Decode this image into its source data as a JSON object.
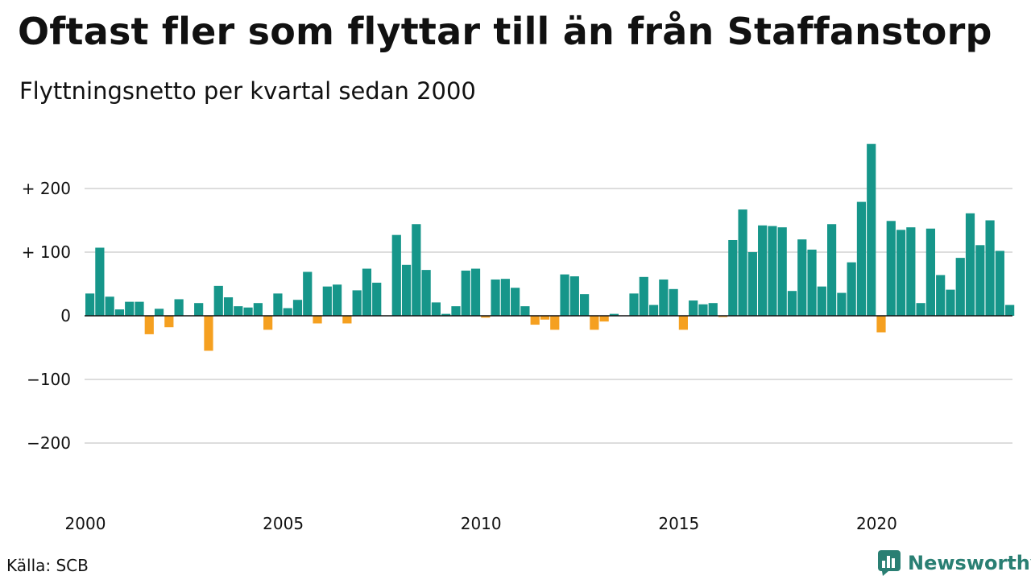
{
  "title": "Oftast fler som flyttar till än från Staffanstorp",
  "subtitle": "Flyttningsnetto per kvartal sedan 2000",
  "source": "Källa: SCB",
  "brand": "Newsworthy",
  "colors": {
    "positive": "#16968a",
    "negative": "#f5a020",
    "grid": "#dddddd",
    "brand": "#2a7f73"
  },
  "chart_data": {
    "type": "bar",
    "title": "Oftast fler som flyttar till än från Staffanstorp",
    "subtitle": "Flyttningsnetto per kvartal sedan 2000",
    "xlabel": "",
    "ylabel": "",
    "start_year": 2000,
    "periods_per_year": 4,
    "ylim": [
      -250,
      280
    ],
    "yticks": [
      {
        "value": 200,
        "label": "+ 200"
      },
      {
        "value": 100,
        "label": "+ 100"
      },
      {
        "value": 0,
        "label": "0"
      },
      {
        "value": -100,
        "label": "−100"
      },
      {
        "value": -200,
        "label": "−200"
      }
    ],
    "xticks": [
      "2000",
      "2005",
      "2010",
      "2015",
      "2020"
    ],
    "grid": true,
    "values": [
      35,
      107,
      30,
      10,
      22,
      22,
      -29,
      11,
      -18,
      26,
      0,
      20,
      -55,
      47,
      29,
      15,
      13,
      20,
      -22,
      35,
      12,
      25,
      69,
      -12,
      46,
      49,
      -12,
      40,
      74,
      52,
      0,
      127,
      80,
      144,
      72,
      21,
      3,
      15,
      71,
      74,
      -3,
      57,
      58,
      44,
      15,
      -14,
      -6,
      -22,
      65,
      62,
      34,
      -22,
      -9,
      3,
      0,
      35,
      61,
      17,
      57,
      42,
      -22,
      24,
      18,
      20,
      -2,
      119,
      167,
      100,
      142,
      141,
      139,
      39,
      120,
      104,
      46,
      144,
      36,
      84,
      179,
      270,
      -26,
      149,
      135,
      139,
      20,
      137,
      64,
      41,
      91,
      161,
      111,
      150,
      102,
      17
    ]
  }
}
